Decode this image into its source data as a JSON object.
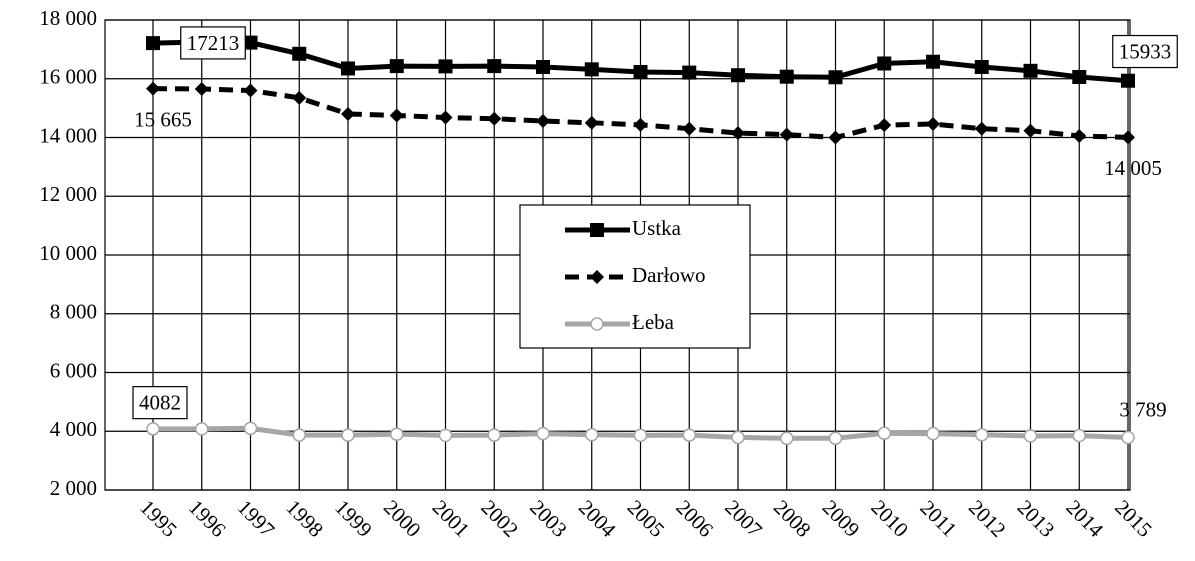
{
  "chart_data": {
    "type": "line",
    "x": [
      1995,
      1996,
      1997,
      1998,
      1999,
      2000,
      2001,
      2002,
      2003,
      2004,
      2005,
      2006,
      2007,
      2008,
      2009,
      2010,
      2011,
      2012,
      2013,
      2014,
      2015
    ],
    "ylim": [
      2000,
      18000
    ],
    "yticks": [
      {
        "value": 2000,
        "label": "2 000"
      },
      {
        "value": 4000,
        "label": "4 000"
      },
      {
        "value": 6000,
        "label": "6 000"
      },
      {
        "value": 8000,
        "label": "8 000"
      },
      {
        "value": 10000,
        "label": "10 000"
      },
      {
        "value": 12000,
        "label": "12 000"
      },
      {
        "value": 14000,
        "label": "14 000"
      },
      {
        "value": 16000,
        "label": "16 000"
      },
      {
        "value": 18000,
        "label": "18 000"
      }
    ],
    "grid": true,
    "legend": "center",
    "series": [
      {
        "name": "Ustka",
        "color": "#000000",
        "line_style": "solid",
        "marker": "square",
        "values": [
          17213,
          17250,
          17230,
          16850,
          16350,
          16430,
          16420,
          16430,
          16400,
          16320,
          16230,
          16210,
          16120,
          16070,
          16050,
          16520,
          16580,
          16400,
          16270,
          16060,
          15933
        ],
        "value_labels": [
          "17213",
          null,
          null,
          null,
          null,
          null,
          null,
          null,
          null,
          null,
          null,
          null,
          null,
          null,
          null,
          null,
          null,
          null,
          null,
          null,
          "15933"
        ]
      },
      {
        "name": "Darłowo",
        "color": "#000000",
        "line_style": "dashed",
        "marker": "diamond",
        "values": [
          15665,
          15650,
          15600,
          15350,
          14800,
          14750,
          14680,
          14640,
          14560,
          14500,
          14430,
          14300,
          14150,
          14100,
          14000,
          14420,
          14460,
          14300,
          14230,
          14050,
          14005
        ],
        "value_labels": [
          "15 665",
          null,
          null,
          null,
          null,
          null,
          null,
          null,
          null,
          null,
          null,
          null,
          null,
          null,
          null,
          null,
          null,
          null,
          null,
          null,
          "14 005"
        ]
      },
      {
        "name": "Łeba",
        "color": "#a6a6a6",
        "line_style": "solid",
        "marker": "circle",
        "values": [
          4082,
          4080,
          4100,
          3870,
          3870,
          3900,
          3860,
          3870,
          3920,
          3880,
          3860,
          3870,
          3790,
          3760,
          3760,
          3930,
          3920,
          3880,
          3840,
          3850,
          3789
        ],
        "value_labels": [
          "4082",
          null,
          null,
          null,
          null,
          null,
          null,
          null,
          null,
          null,
          null,
          null,
          null,
          null,
          null,
          null,
          null,
          null,
          null,
          null,
          "3 789"
        ]
      }
    ]
  }
}
